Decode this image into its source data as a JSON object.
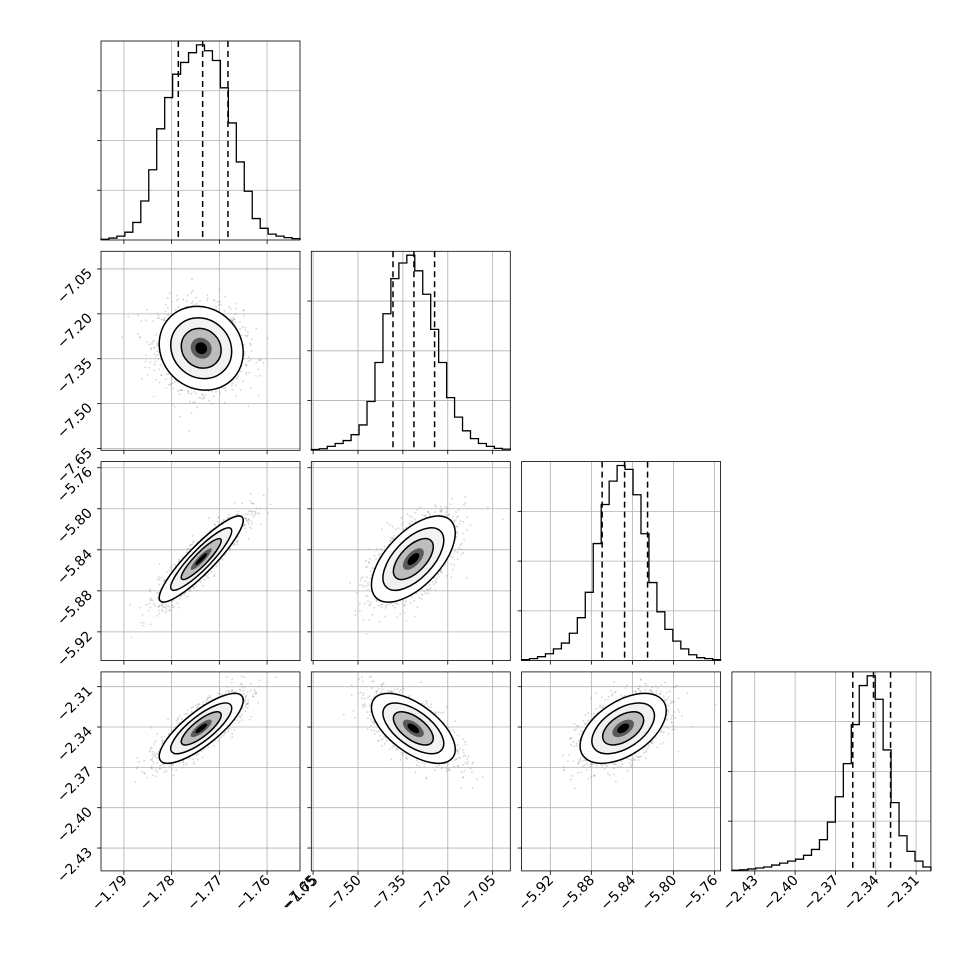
{
  "chart_data": {
    "type": "corner",
    "grid": true,
    "scatter_color": "#a0a0a0",
    "line_color": "#000000",
    "hist_step_color": "#000000",
    "density_colormap": [
      "#ffffff",
      "#000000"
    ],
    "parameters": [
      {
        "ticks": [
          -1.79,
          -1.78,
          -1.77,
          -1.76,
          -1.75
        ],
        "tick_labels": [
          "−1.79",
          "−1.78",
          "−1.77",
          "−1.76",
          "−1.75"
        ],
        "range": [
          -1.7948,
          -1.7531
        ],
        "mean": -1.7738,
        "sd": 0.0044,
        "quantiles": [
          -1.7786,
          -1.7735,
          -1.7682
        ],
        "histogram": [
          0.4,
          1,
          2,
          4,
          9,
          20,
          36,
          57,
          73,
          85,
          91,
          96,
          100,
          97,
          92,
          78,
          60,
          40,
          25,
          11,
          6,
          3,
          2,
          1.2,
          0.7
        ]
      },
      {
        "ticks": [
          -7.65,
          -7.5,
          -7.35,
          -7.2,
          -7.05
        ],
        "tick_labels": [
          "−7.65",
          "−7.50",
          "−7.35",
          "−7.20",
          "−7.05"
        ],
        "range": [
          -7.656,
          -6.991
        ],
        "mean": -7.315,
        "sd": 0.07,
        "quantiles": [
          -7.383,
          -7.313,
          -7.244
        ],
        "histogram": [
          0.4,
          0.8,
          2,
          3.5,
          5,
          8,
          13,
          25,
          45,
          70,
          88,
          96,
          100,
          92,
          80,
          62,
          45,
          27,
          17,
          10,
          6,
          3.5,
          2,
          1,
          0.6
        ]
      },
      {
        "ticks": [
          -5.92,
          -5.88,
          -5.84,
          -5.8,
          -5.76
        ],
        "tick_labels": [
          "−5.92",
          "−5.88",
          "−5.84",
          "−5.80",
          "−5.76"
        ],
        "range": [
          -5.948,
          -5.754
        ],
        "mean": -5.849,
        "sd": 0.021,
        "quantiles": [
          -5.8695,
          -5.8476,
          -5.8252
        ],
        "histogram": [
          0.5,
          1,
          2,
          3.5,
          6,
          9,
          14,
          22,
          35,
          60,
          80,
          92,
          100,
          98,
          85,
          65,
          40,
          25,
          16,
          10,
          6,
          3,
          1.5,
          1,
          0.5
        ]
      },
      {
        "ticks": [
          -2.43,
          -2.4,
          -2.37,
          -2.34,
          -2.31
        ],
        "tick_labels": [
          "−2.43",
          "−2.40",
          "−2.37",
          "−2.34",
          "−2.31"
        ],
        "range": [
          -2.447,
          -2.299
        ],
        "mean": -2.341,
        "sd": 0.013,
        "quantiles": [
          -2.3571,
          -2.3417,
          -2.329
        ],
        "histogram": [
          0.3,
          0.6,
          1,
          1.5,
          2,
          3,
          4,
          5,
          6,
          8,
          11,
          16,
          25,
          38,
          55,
          75,
          95,
          100,
          88,
          62,
          35,
          18,
          10,
          5,
          2
        ]
      }
    ],
    "correlations": [
      [
        1,
        -0.1,
        0.9,
        0.8
      ],
      [
        -0.1,
        1,
        0.6,
        -0.6
      ],
      [
        0.9,
        0.6,
        1,
        0.5
      ],
      [
        0.8,
        -0.6,
        0.5,
        1
      ]
    ]
  }
}
